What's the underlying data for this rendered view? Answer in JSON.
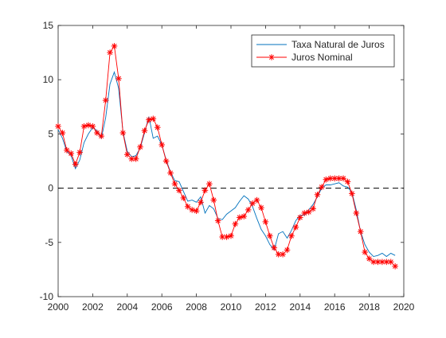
{
  "chart_data": {
    "type": "line",
    "title": "",
    "xlabel": "",
    "ylabel": "",
    "xlim": [
      2000,
      2020
    ],
    "ylim": [
      -10,
      15
    ],
    "xticks": [
      2000,
      2002,
      2004,
      2006,
      2008,
      2010,
      2012,
      2014,
      2016,
      2018,
      2020
    ],
    "yticks": [
      -10,
      -5,
      0,
      5,
      10,
      15
    ],
    "xtick_labels": [
      "2000",
      "2002",
      "2004",
      "2006",
      "2008",
      "2010",
      "2012",
      "2014",
      "2016",
      "2018",
      "2020"
    ],
    "ytick_labels": [
      "-10",
      "-5",
      "0",
      "5",
      "10",
      "15"
    ],
    "grid": false,
    "legend_position": "top-right",
    "zero_line": {
      "y": 0,
      "style": "dashed",
      "color": "#000000"
    },
    "series": [
      {
        "name": "Taxa Natural de Juros",
        "color": "#0072BD",
        "marker": "none",
        "x": [
          2000.0,
          2000.25,
          2000.5,
          2000.75,
          2001.0,
          2001.25,
          2001.5,
          2001.75,
          2002.0,
          2002.25,
          2002.5,
          2002.75,
          2003.0,
          2003.25,
          2003.5,
          2003.75,
          2004.0,
          2004.25,
          2004.5,
          2004.75,
          2005.0,
          2005.25,
          2005.5,
          2005.75,
          2006.0,
          2006.25,
          2006.5,
          2006.75,
          2007.0,
          2007.25,
          2007.5,
          2007.75,
          2008.0,
          2008.25,
          2008.5,
          2008.75,
          2009.0,
          2009.25,
          2009.5,
          2009.75,
          2010.0,
          2010.25,
          2010.5,
          2010.75,
          2011.0,
          2011.25,
          2011.5,
          2011.75,
          2012.0,
          2012.25,
          2012.5,
          2012.75,
          2013.0,
          2013.25,
          2013.5,
          2013.75,
          2014.0,
          2014.25,
          2014.5,
          2014.75,
          2015.0,
          2015.25,
          2015.5,
          2015.75,
          2016.0,
          2016.25,
          2016.5,
          2016.75,
          2017.0,
          2017.25,
          2017.5,
          2017.75,
          2018.0,
          2018.25,
          2018.5,
          2018.75,
          2019.0,
          2019.25,
          2019.5
        ],
        "values": [
          5.4,
          4.6,
          3.4,
          3.0,
          1.8,
          2.6,
          4.2,
          5.0,
          5.6,
          5.3,
          4.6,
          6.5,
          9.6,
          10.7,
          9.2,
          5.2,
          3.4,
          2.9,
          3.0,
          3.7,
          5.1,
          6.6,
          4.6,
          4.8,
          4.0,
          2.6,
          1.5,
          0.7,
          0.6,
          -0.3,
          -1.2,
          -1.1,
          -1.3,
          -0.8,
          -2.3,
          -1.6,
          -1.9,
          -2.8,
          -2.9,
          -2.4,
          -2.1,
          -1.8,
          -1.2,
          -0.7,
          -1.0,
          -1.7,
          -2.8,
          -3.8,
          -4.4,
          -5.2,
          -5.7,
          -4.2,
          -4.0,
          -4.6,
          -3.9,
          -3.0,
          -2.5,
          -2.5,
          -2.0,
          -1.5,
          -0.8,
          0.0,
          0.3,
          0.3,
          0.4,
          0.5,
          0.2,
          0.1,
          -0.4,
          -2.0,
          -4.0,
          -5.2,
          -5.9,
          -6.3,
          -6.2,
          -6.0,
          -6.3,
          -6.0,
          -6.2
        ]
      },
      {
        "name": "Juros Nominal",
        "color": "#FF0000",
        "marker": "asterisk",
        "x": [
          2000.0,
          2000.25,
          2000.5,
          2000.75,
          2001.0,
          2001.25,
          2001.5,
          2001.75,
          2002.0,
          2002.25,
          2002.5,
          2002.75,
          2003.0,
          2003.25,
          2003.5,
          2003.75,
          2004.0,
          2004.25,
          2004.5,
          2004.75,
          2005.0,
          2005.25,
          2005.5,
          2005.75,
          2006.0,
          2006.25,
          2006.5,
          2006.75,
          2007.0,
          2007.25,
          2007.5,
          2007.75,
          2008.0,
          2008.25,
          2008.5,
          2008.75,
          2009.0,
          2009.25,
          2009.5,
          2009.75,
          2010.0,
          2010.25,
          2010.5,
          2010.75,
          2011.0,
          2011.25,
          2011.5,
          2011.75,
          2012.0,
          2012.25,
          2012.5,
          2012.75,
          2013.0,
          2013.25,
          2013.5,
          2013.75,
          2014.0,
          2014.25,
          2014.5,
          2014.75,
          2015.0,
          2015.25,
          2015.5,
          2015.75,
          2016.0,
          2016.25,
          2016.5,
          2016.75,
          2017.0,
          2017.25,
          2017.5,
          2017.75,
          2018.0,
          2018.25,
          2018.5,
          2018.75,
          2019.0,
          2019.25,
          2019.5
        ],
        "values": [
          5.7,
          5.1,
          3.5,
          3.2,
          2.2,
          3.3,
          5.7,
          5.8,
          5.7,
          5.1,
          4.8,
          8.1,
          12.5,
          13.1,
          10.1,
          5.1,
          3.1,
          2.7,
          2.7,
          3.8,
          5.3,
          6.3,
          6.4,
          5.6,
          4.0,
          2.5,
          1.4,
          0.4,
          -0.2,
          -0.9,
          -1.7,
          -2.0,
          -2.1,
          -1.3,
          -0.2,
          0.4,
          -1.1,
          -3.0,
          -4.5,
          -4.5,
          -4.4,
          -3.3,
          -2.7,
          -2.6,
          -2.0,
          -1.4,
          -1.1,
          -1.8,
          -3.1,
          -4.4,
          -5.5,
          -6.1,
          -6.1,
          -5.7,
          -4.4,
          -3.6,
          -2.7,
          -2.3,
          -2.2,
          -1.9,
          -0.6,
          0.1,
          0.8,
          0.9,
          0.9,
          0.9,
          0.9,
          0.6,
          -0.5,
          -2.3,
          -4.0,
          -5.9,
          -6.5,
          -6.8,
          -6.8,
          -6.8,
          -6.8,
          -6.8,
          -7.2
        ]
      }
    ]
  }
}
